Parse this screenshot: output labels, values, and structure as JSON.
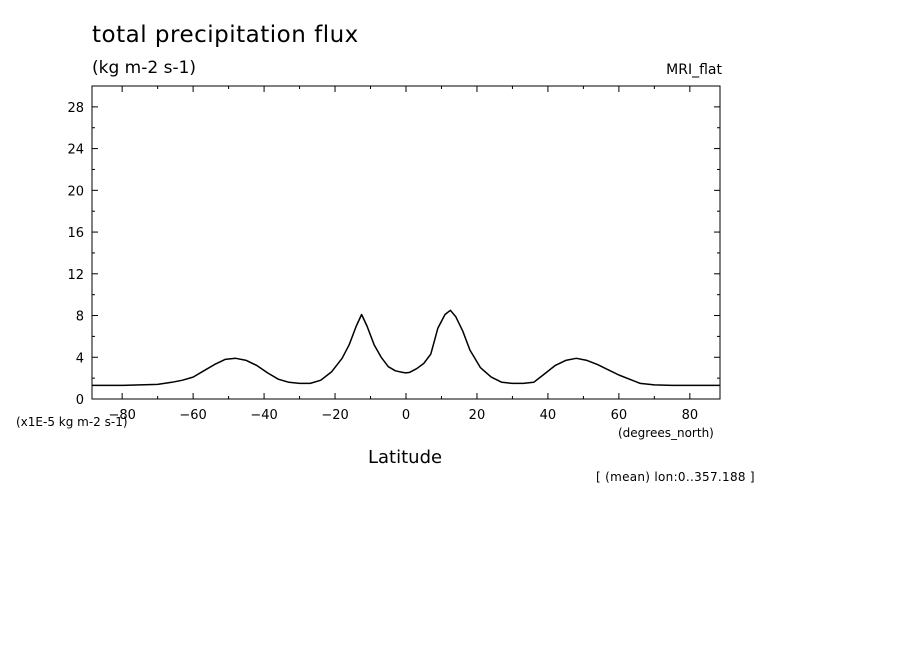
{
  "chart_data": {
    "type": "line",
    "title": "total precipitation flux",
    "units": "(kg m-2 s-1)",
    "dataset": "MRI_flat",
    "scale_label": "(x1E-5 kg m-2 s-1)",
    "xlabel": "Latitude",
    "xunit": "(degrees_north)",
    "footnote": "[ (mean) lon:0..357.188 ]",
    "xlim": [
      -88.5,
      88.5
    ],
    "ylim": [
      0,
      30
    ],
    "xticks": [
      -80,
      -60,
      -40,
      -20,
      0,
      20,
      40,
      60,
      80
    ],
    "xtick_labels": [
      "-80",
      "-60",
      "-40",
      "-20",
      "0",
      "20",
      "40",
      "60",
      "80"
    ],
    "yticks": [
      0,
      4,
      8,
      12,
      16,
      20,
      24,
      28
    ],
    "ytick_labels": [
      "0",
      "4",
      "8",
      "12",
      "16",
      "20",
      "24",
      "28"
    ],
    "grid": false,
    "series": [
      {
        "x": [
          -88.5,
          -80,
          -75,
          -70,
          -66,
          -63,
          -60,
          -57,
          -54,
          -51,
          -48,
          -45,
          -42,
          -39,
          -36,
          -33,
          -30,
          -27,
          -24,
          -21,
          -18,
          -16,
          -14,
          -12.5,
          -11,
          -9,
          -7,
          -5,
          -3,
          -1,
          0,
          1,
          3,
          5,
          7,
          9,
          11,
          12.5,
          14,
          16,
          18,
          21,
          24,
          27,
          30,
          33,
          36,
          39,
          42,
          45,
          48,
          51,
          54,
          57,
          60,
          63,
          66,
          70,
          75,
          80,
          88.5
        ],
        "y": [
          1.3,
          1.3,
          1.35,
          1.4,
          1.6,
          1.8,
          2.1,
          2.7,
          3.3,
          3.8,
          3.9,
          3.7,
          3.2,
          2.5,
          1.9,
          1.6,
          1.5,
          1.5,
          1.8,
          2.6,
          3.9,
          5.2,
          7.0,
          8.1,
          7.0,
          5.2,
          4.0,
          3.1,
          2.7,
          2.55,
          2.5,
          2.55,
          2.9,
          3.4,
          4.3,
          6.8,
          8.1,
          8.5,
          7.9,
          6.5,
          4.7,
          3.0,
          2.1,
          1.6,
          1.5,
          1.5,
          1.6,
          2.4,
          3.2,
          3.7,
          3.9,
          3.7,
          3.3,
          2.8,
          2.3,
          1.9,
          1.5,
          1.35,
          1.3,
          1.3,
          1.3
        ]
      }
    ]
  }
}
